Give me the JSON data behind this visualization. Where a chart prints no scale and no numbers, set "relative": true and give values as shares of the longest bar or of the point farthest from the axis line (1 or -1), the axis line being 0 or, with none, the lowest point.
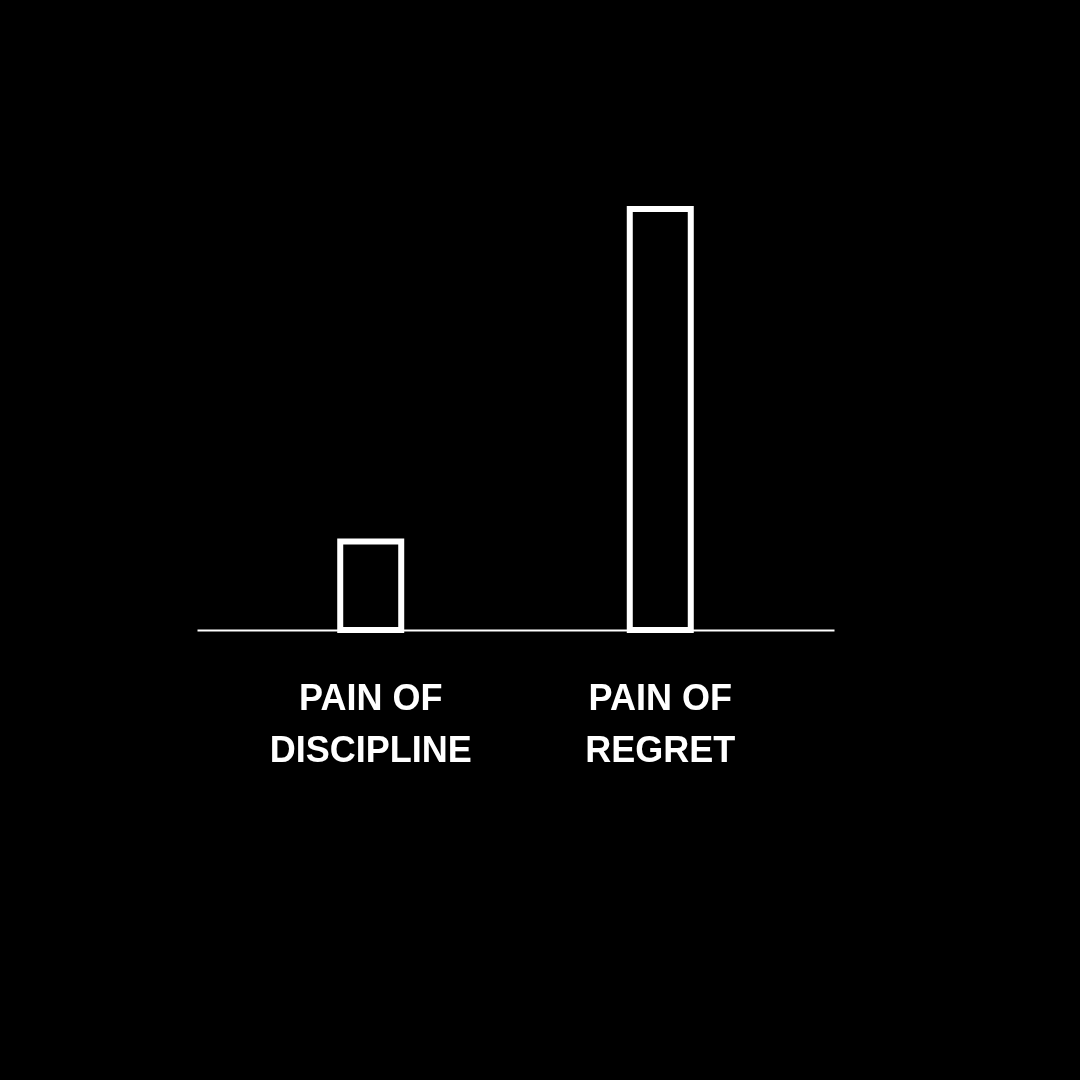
{
  "chart_data": {
    "type": "bar",
    "relative": true,
    "categories": [
      "PAIN OF\nDISCIPLINE",
      "PAIN OF\nREGRET"
    ],
    "values": [
      0.21,
      1
    ],
    "color": "#ffffff"
  }
}
